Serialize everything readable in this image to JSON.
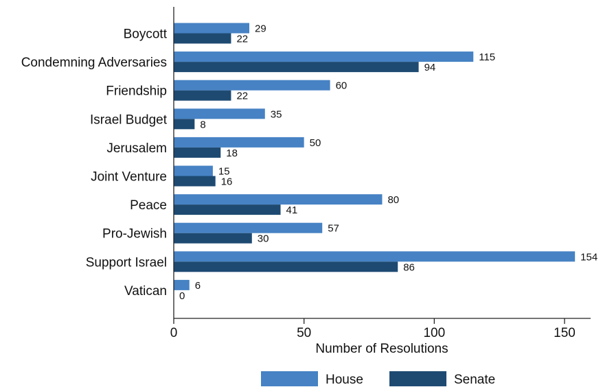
{
  "chart_data": {
    "type": "bar",
    "orientation": "horizontal",
    "categories": [
      "Boycott",
      "Condemning Adversaries",
      "Friendship",
      "Israel Budget",
      "Jerusalem",
      "Joint Venture",
      "Peace",
      "Pro-Jewish",
      "Support Israel",
      "Vatican"
    ],
    "series": [
      {
        "name": "House",
        "color": "#4682C4",
        "values": [
          29,
          115,
          60,
          35,
          50,
          15,
          80,
          57,
          154,
          6
        ]
      },
      {
        "name": "Senate",
        "color": "#1E4A72",
        "values": [
          22,
          94,
          22,
          8,
          18,
          16,
          41,
          30,
          86,
          0
        ]
      }
    ],
    "xlabel": "Number of Resolutions",
    "xlim": [
      0,
      160
    ],
    "xticks": [
      0,
      50,
      100,
      150
    ],
    "grid": false,
    "legend_position": "bottom"
  }
}
